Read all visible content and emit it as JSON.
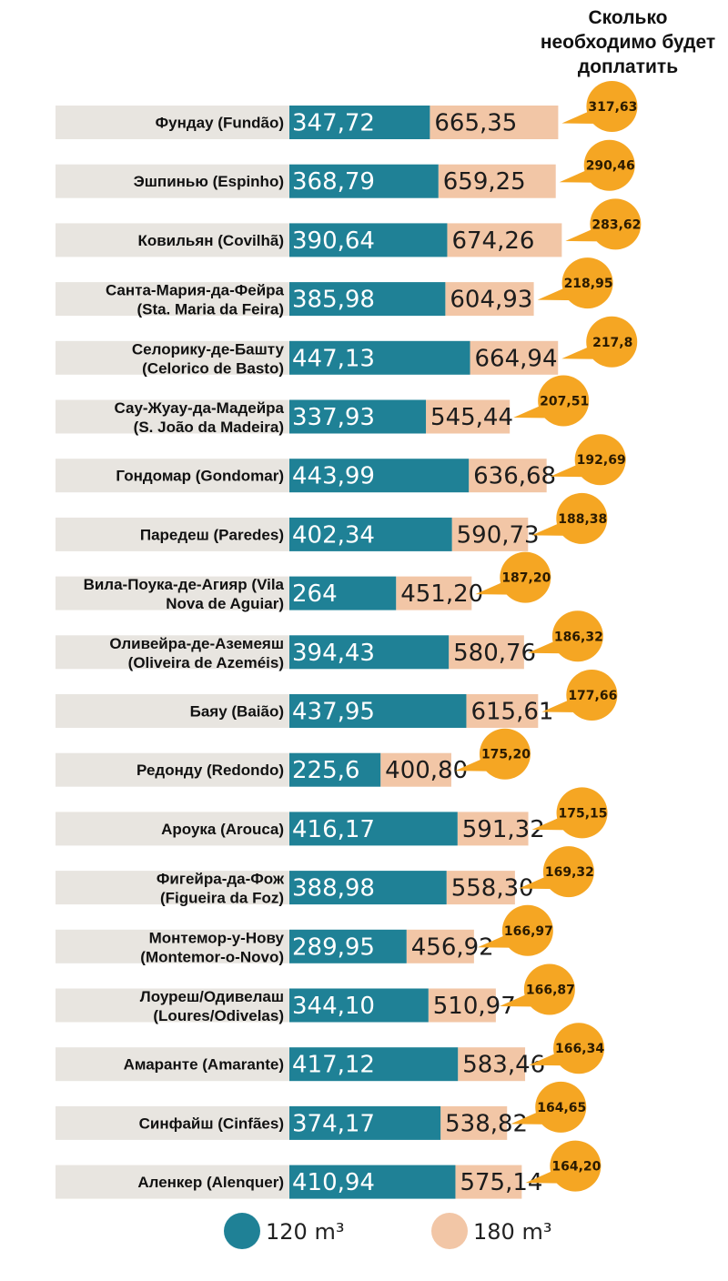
{
  "chart_data": {
    "type": "bar",
    "title": "Сколько необходимо будет доплатить",
    "title_lines": [
      "Сколько",
      "необходимо будет",
      "доплатить"
    ],
    "colors": {
      "series_120": "#1f8196",
      "series_180": "#f2c6a6",
      "label_band": "#e8e5e0",
      "callout": "#f5a623"
    },
    "categories": [
      [
        "Фундау (Fundão)"
      ],
      [
        "Эшпинью (Espinho)"
      ],
      [
        "Ковильян (Covilhã)"
      ],
      [
        "Санта-Мария-да-Фейра",
        "(Sta. Maria da Feira)"
      ],
      [
        "Селорику-де-Башту",
        "(Celorico de Basto)"
      ],
      [
        "Сау-Жуау-да-Мадейра",
        "(S. João da Madeira)"
      ],
      [
        "Гондомар (Gondomar)"
      ],
      [
        "Паредеш (Paredes)"
      ],
      [
        "Вила-Поука-де-Агияр (Vila",
        "Nova de Aguiar)"
      ],
      [
        "Оливейра-де-Аземеяш",
        "(Oliveira de Azeméis)"
      ],
      [
        "Баяу (Baião)"
      ],
      [
        "Редонду (Redondo)"
      ],
      [
        "Ароука (Arouca)"
      ],
      [
        "Фигейра-да-Фож",
        "(Figueira da Foz)"
      ],
      [
        "Монтемор-у-Нову",
        "(Montemor-o-Novo)"
      ],
      [
        "Лоуреш/Одивелаш",
        "(Loures/Odivelas)"
      ],
      [
        "Амаранте (Amarante)"
      ],
      [
        "Синфайш (Cinfães)"
      ],
      [
        "Аленкер (Alenquer)"
      ]
    ],
    "series": [
      {
        "name": "120 m³",
        "values": [
          347.72,
          368.79,
          390.64,
          385.98,
          447.13,
          337.93,
          443.99,
          402.34,
          264,
          394.43,
          437.95,
          225.6,
          416.17,
          388.98,
          289.95,
          344.1,
          417.12,
          374.17,
          410.94
        ],
        "labels": [
          "347,72",
          "368,79",
          "390,64",
          "385,98",
          "447,13",
          "337,93",
          "443,99",
          "402,34",
          "264",
          "394,43",
          "437,95",
          "225,6",
          "416,17",
          "388,98",
          "289,95",
          "344,10",
          "417,12",
          "374,17",
          "410,94"
        ]
      },
      {
        "name": "180 m³",
        "values": [
          665.35,
          659.25,
          674.26,
          604.93,
          664.94,
          545.44,
          636.68,
          590.73,
          451.2,
          580.76,
          615.61,
          400.8,
          591.32,
          558.3,
          456.92,
          510.97,
          583.46,
          538.82,
          575.14
        ],
        "labels": [
          "665,35",
          "659,25",
          "674,26",
          "604,93",
          "664,94",
          "545,44",
          "636,68",
          "590,73",
          "451,20",
          "580,76",
          "615,61",
          "400,80",
          "591,32",
          "558,30",
          "456,92",
          "510,97",
          "583,46",
          "538,82",
          "575,14"
        ]
      }
    ],
    "difference": {
      "name": "Сколько необходимо будет доплатить",
      "values": [
        317.63,
        290.46,
        283.62,
        218.95,
        217.8,
        207.51,
        192.69,
        188.38,
        187.2,
        186.32,
        177.66,
        175.2,
        175.15,
        169.32,
        166.97,
        166.87,
        166.34,
        164.65,
        164.2
      ],
      "labels": [
        "317,63",
        "290,46",
        "283,62",
        "218,95",
        "217,8",
        "207,51",
        "192,69",
        "188,38",
        "187,20",
        "186,32",
        "177,66",
        "175,20",
        "175,15",
        "169,32",
        "166,97",
        "166,87",
        "166,34",
        "164,65",
        "164,20"
      ]
    },
    "legend": [
      {
        "name": "120 m³",
        "color": "#1f8196"
      },
      {
        "name": "180 m³",
        "color": "#f2c6a6"
      }
    ],
    "xlabel": "",
    "ylabel": "",
    "xlim": [
      0,
      700
    ],
    "grid": false
  }
}
